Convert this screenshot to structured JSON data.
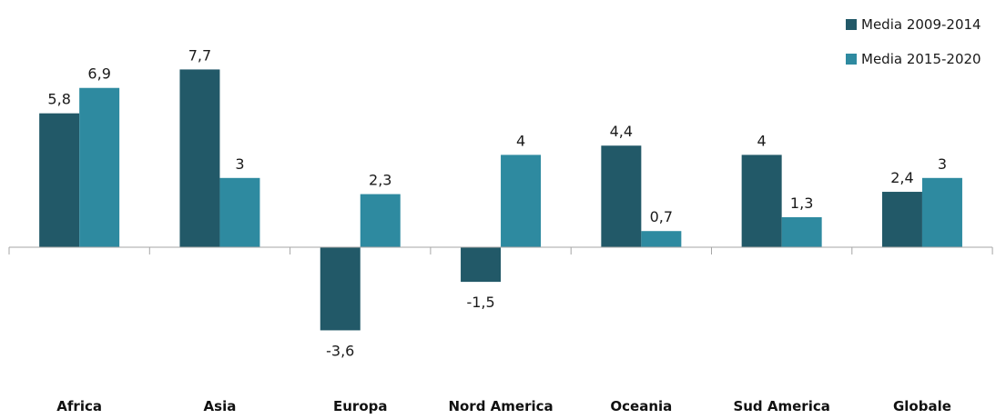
{
  "chart_data": {
    "type": "bar",
    "categories": [
      "Africa",
      "Asia",
      "Europa",
      "Nord America",
      "Oceania",
      "Sud America",
      "Globale"
    ],
    "series": [
      {
        "name": "Media 2009-2014",
        "color": "#225968",
        "values": [
          5.8,
          7.7,
          -3.6,
          -1.5,
          4.4,
          4,
          2.4
        ],
        "labels": [
          "5,8",
          "7,7",
          "-3,6",
          "-1,5",
          "4,4",
          "4",
          "2,4"
        ]
      },
      {
        "name": "Media 2015-2020",
        "color": "#2e8aa0",
        "values": [
          6.9,
          3,
          2.3,
          4,
          0.7,
          1.3,
          3
        ],
        "labels": [
          "6,9",
          "3",
          "2,3",
          "4",
          "0,7",
          "1,3",
          "3"
        ]
      }
    ],
    "title": "",
    "xlabel": "",
    "ylabel": "",
    "legend_position": "top-right",
    "grid": false,
    "axis_color": "#a6a6a6"
  }
}
